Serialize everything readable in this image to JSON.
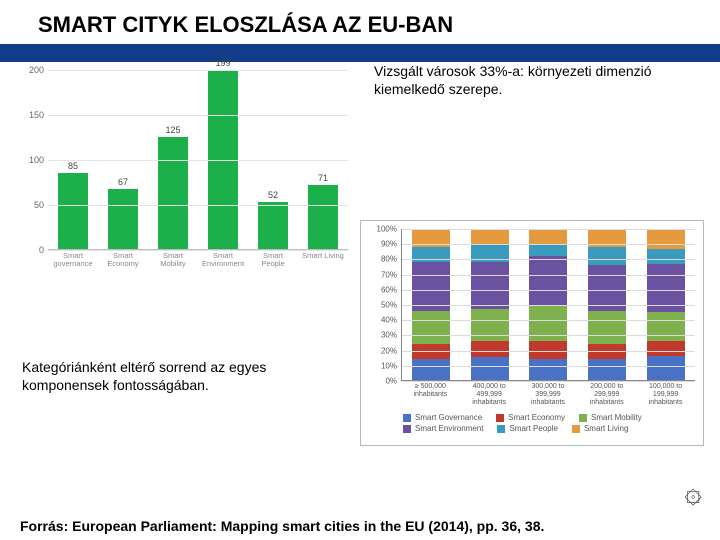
{
  "title": "SMART CITYK ELOSZLÁSA AZ EU-BAN",
  "blue_band_color": "#123b8a",
  "bar_chart": {
    "type": "bar",
    "y_ticks": [
      0,
      50,
      100,
      150,
      200
    ],
    "ylim": [
      0,
      200
    ],
    "bar_color": "#1bb04a",
    "grid_color": "#e5e5e5",
    "categories": [
      "Smart governance",
      "Smart Economy",
      "Smart Mobility",
      "Smart Environment",
      "Smart People",
      "Smart Living"
    ],
    "values": [
      85,
      67,
      125,
      199,
      52,
      71
    ]
  },
  "caption_right": "Vizsgált városok 33%-a: környezeti dimenzió kiemelkedő szerepe.",
  "caption_left": "Kategóriánként eltérő sorrend az egyes komponensek fontosságában.",
  "stack_chart": {
    "type": "stacked-bar",
    "y_ticks": [
      0,
      10,
      20,
      30,
      40,
      50,
      60,
      70,
      80,
      90,
      100
    ],
    "y_tick_labels": [
      "0%",
      "10%",
      "20%",
      "30%",
      "40%",
      "50%",
      "60%",
      "70%",
      "80%",
      "90%",
      "100%"
    ],
    "categories": [
      "≥ 500,000 inhabitants",
      "400,000 to 499,999 inhabitants",
      "300,000 to 399,999 inhabitants",
      "200,000 to 299,999 inhabitants",
      "100,000 to 199,999 inhabitants"
    ],
    "series_order": [
      "governance",
      "economy",
      "mobility",
      "environment",
      "people",
      "living"
    ],
    "series_colors": {
      "governance": "#4a72c4",
      "economy": "#c0392b",
      "mobility": "#7fb24e",
      "environment": "#6b52a1",
      "people": "#3a9bbf",
      "living": "#e49a3f"
    },
    "series_labels": {
      "governance": "Smart Governance",
      "economy": "Smart Economy",
      "mobility": "Smart Mobility",
      "environment": "Smart Environment",
      "people": "Smart People",
      "living": "Smart Living"
    },
    "stacks": [
      {
        "governance": 14,
        "economy": 10,
        "mobility": 22,
        "environment": 32,
        "people": 10,
        "living": 12
      },
      {
        "governance": 15,
        "economy": 11,
        "mobility": 21,
        "environment": 31,
        "people": 12,
        "living": 10
      },
      {
        "governance": 14,
        "economy": 12,
        "mobility": 23,
        "environment": 33,
        "people": 8,
        "living": 10
      },
      {
        "governance": 14,
        "economy": 10,
        "mobility": 22,
        "environment": 30,
        "people": 12,
        "living": 12
      },
      {
        "governance": 16,
        "economy": 10,
        "mobility": 19,
        "environment": 32,
        "people": 10,
        "living": 13
      }
    ]
  },
  "source": "Forrás: European Parliament: Mapping smart cities in the EU (2014), pp. 36, 38.",
  "logo_glyph": "۞"
}
